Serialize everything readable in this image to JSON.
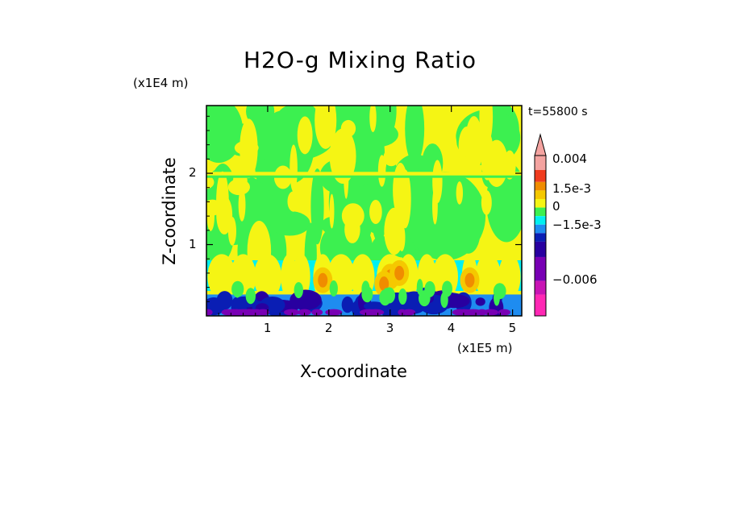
{
  "chart_data": {
    "type": "heatmap",
    "title": "H2O-g Mixing Ratio",
    "xlabel": "X-coordinate",
    "ylabel": "Z-coordinate",
    "x_unit_label": "(x1E5 m)",
    "y_unit_label": "(x1E4 m)",
    "time_label": "t=55800 s",
    "xlim": [
      0,
      5.15
    ],
    "ylim": [
      0,
      2.95
    ],
    "x_ticks": [
      "1",
      "2",
      "3",
      "4",
      "5"
    ],
    "y_ticks": [
      "1",
      "2"
    ],
    "colorbar": {
      "tick_labels": [
        "0.004",
        "1.5e-3",
        "0",
        "−1.5e-3",
        "−0.006"
      ],
      "levels": [
        {
          "upper": 0.004,
          "color": "#f4a3a0"
        },
        {
          "upper": 0.003,
          "color": "#f03c1e"
        },
        {
          "upper": 0.002,
          "color": "#f08c00"
        },
        {
          "upper": 0.0015,
          "color": "#f5c800"
        },
        {
          "upper": 0.001,
          "color": "#f5f514"
        },
        {
          "upper": 0.0005,
          "color": "#3cf050"
        },
        {
          "upper": 0.0,
          "color": "#00f0f0"
        },
        {
          "upper": -0.0005,
          "color": "#1e8cf0"
        },
        {
          "upper": -0.001,
          "color": "#0a1eb4"
        },
        {
          "upper": -0.0015,
          "color": "#2800a0"
        },
        {
          "upper": -0.003,
          "color": "#7800b4"
        },
        {
          "upper": -0.006,
          "color": "#c814b4"
        },
        {
          "upper": -0.009,
          "color": "#ff28b4"
        }
      ]
    },
    "field_description": "Upper region mostly yellow/green mixing bands; horizontal yellow streak near z=2; cyan layer near z=0.7; orange plumes near x=1.9, 3.0, 4.3; dark blue/purple near the surface."
  }
}
